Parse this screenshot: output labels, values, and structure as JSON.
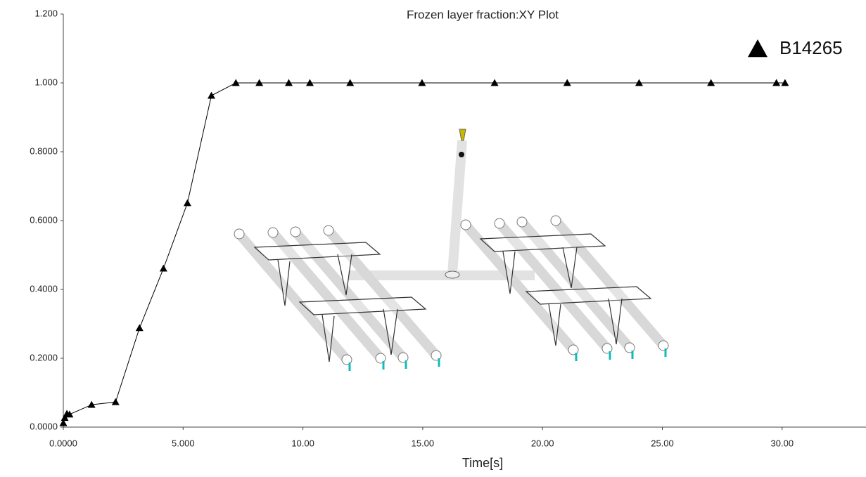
{
  "chart_data": {
    "type": "line",
    "title": "Frozen layer fraction:XY Plot",
    "x_label": "Time[s]",
    "x": [
      0,
      0.06,
      0.15,
      0.26,
      1.18,
      2.18,
      3.18,
      4.18,
      5.18,
      6.18,
      7.2,
      8.18,
      9.41,
      10.29,
      11.97,
      14.97,
      18.0,
      21.03,
      24.03,
      27.03,
      29.76,
      30.12
    ],
    "series": [
      {
        "name": "B14265",
        "color": "#000000",
        "values": [
          0.012,
          0.027,
          0.039,
          0.037,
          0.065,
          0.073,
          0.288,
          0.461,
          0.651,
          0.963,
          1.0,
          1.0,
          1.0,
          1.0,
          1.0,
          1.0,
          1.0,
          1.0,
          1.0,
          1.0,
          1.0,
          1.0
        ]
      }
    ],
    "xlim": [
      0,
      33.5
    ],
    "ylim": [
      0,
      1.2
    ],
    "xticks": [
      {
        "value": 0,
        "label": "0.0000"
      },
      {
        "value": 5,
        "label": "5.000"
      },
      {
        "value": 10,
        "label": "10.00"
      },
      {
        "value": 15,
        "label": "15.00"
      },
      {
        "value": 20,
        "label": "20.00"
      },
      {
        "value": 25,
        "label": "25.00"
      },
      {
        "value": 30,
        "label": "30.00"
      }
    ],
    "yticks": [
      {
        "value": 0,
        "label": "0.0000"
      },
      {
        "value": 0.2,
        "label": "0.2000"
      },
      {
        "value": 0.4,
        "label": "0.4000"
      },
      {
        "value": 0.6,
        "label": "0.6000"
      },
      {
        "value": 0.8,
        "label": "0.8000"
      },
      {
        "value": 1.0,
        "label": "1.000"
      },
      {
        "value": 1.2,
        "label": "1.200"
      }
    ],
    "grid": false,
    "legend_position": "upper right"
  }
}
